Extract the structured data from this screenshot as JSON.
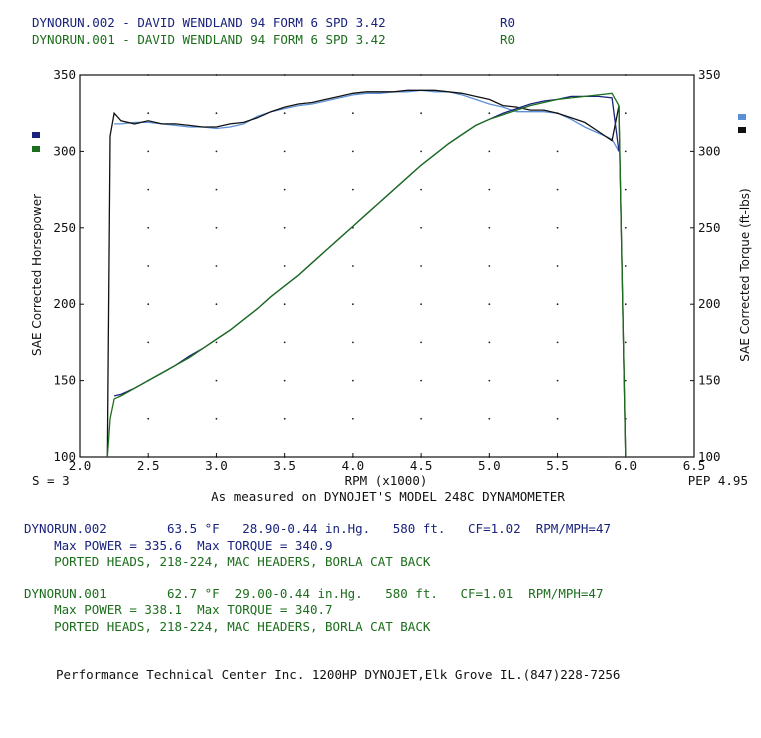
{
  "header": {
    "run2_title": "DYNORUN.002 - DAVID WENDLAND 94 FORM 6 SPD 3.42",
    "run2_code": "R0",
    "run1_title": "DYNORUN.001 - DAVID WENDLAND 94 FORM 6 SPD 3.42",
    "run1_code": "R0"
  },
  "colors": {
    "run2": "#1a237e",
    "run2_curve_hp": "#5b8fd6",
    "run1": "#1b6e1b",
    "run1_curve": "#111111"
  },
  "chart_data": {
    "type": "line",
    "xlabel": "RPM (x1000)",
    "ylabel_left": "SAE Corrected Horsepower",
    "ylabel_right": "SAE Corrected Torque (ft-lbs)",
    "xlim": [
      2.0,
      6.5
    ],
    "ylim": [
      100,
      350
    ],
    "x_ticks": [
      "2.0",
      "2.5",
      "3.0",
      "3.5",
      "4.0",
      "4.5",
      "5.0",
      "5.5",
      "6.0",
      "6.5"
    ],
    "y_ticks": [
      "100",
      "150",
      "200",
      "250",
      "300",
      "350"
    ],
    "grid": true,
    "smoothing_note": "S = 3",
    "pep_note": "PEP 4.95",
    "subtitle": "As measured on DYNOJET'S MODEL 248C DYNAMOMETER",
    "series": [
      {
        "name": "DYNORUN.002",
        "measure": "torque",
        "x": [
          2.25,
          2.3,
          2.4,
          2.5,
          2.6,
          2.7,
          2.8,
          2.9,
          3.0,
          3.1,
          3.2,
          3.3,
          3.4,
          3.5,
          3.6,
          3.7,
          3.8,
          3.9,
          4.0,
          4.1,
          4.2,
          4.3,
          4.4,
          4.5,
          4.6,
          4.7,
          4.8,
          4.9,
          5.0,
          5.1,
          5.2,
          5.3,
          5.4,
          5.5,
          5.6,
          5.7,
          5.8,
          5.9,
          5.95
        ],
        "y": [
          318,
          318,
          319,
          319,
          318,
          317,
          316,
          316,
          315,
          316,
          318,
          323,
          326,
          328,
          330,
          331,
          333,
          335,
          337,
          338,
          338,
          339,
          339,
          340,
          339,
          339,
          337,
          334,
          331,
          329,
          326,
          326,
          326,
          325,
          321,
          316,
          312,
          308,
          300
        ]
      },
      {
        "name": "DYNORUN.001",
        "measure": "torque",
        "x": [
          2.2,
          2.22,
          2.25,
          2.3,
          2.4,
          2.5,
          2.6,
          2.7,
          2.8,
          2.9,
          3.0,
          3.1,
          3.2,
          3.3,
          3.4,
          3.5,
          3.6,
          3.7,
          3.8,
          3.9,
          4.0,
          4.1,
          4.2,
          4.3,
          4.4,
          4.5,
          4.6,
          4.7,
          4.8,
          4.9,
          5.0,
          5.1,
          5.2,
          5.3,
          5.4,
          5.5,
          5.6,
          5.7,
          5.8,
          5.9,
          5.95,
          6.0
        ],
        "y": [
          100,
          310,
          325,
          320,
          318,
          320,
          318,
          318,
          317,
          316,
          316,
          318,
          319,
          322,
          326,
          329,
          331,
          332,
          334,
          336,
          338,
          339,
          339,
          339,
          340,
          340,
          340,
          339,
          338,
          336,
          334,
          330,
          329,
          327,
          327,
          325,
          322,
          319,
          313,
          307,
          330,
          100
        ]
      },
      {
        "name": "DYNORUN.002",
        "measure": "horsepower",
        "x": [
          2.25,
          2.3,
          2.4,
          2.5,
          2.6,
          2.7,
          2.8,
          2.9,
          3.0,
          3.1,
          3.2,
          3.3,
          3.4,
          3.5,
          3.6,
          3.7,
          3.8,
          3.9,
          4.0,
          4.1,
          4.2,
          4.3,
          4.4,
          4.5,
          4.6,
          4.7,
          4.8,
          4.9,
          5.0,
          5.1,
          5.2,
          5.3,
          5.4,
          5.5,
          5.6,
          5.7,
          5.8,
          5.9,
          5.95
        ],
        "y": [
          140,
          141,
          145,
          150,
          155,
          160,
          166,
          171,
          177,
          183,
          190,
          197,
          205,
          212,
          219,
          227,
          235,
          243,
          251,
          259,
          267,
          275,
          283,
          291,
          298,
          305,
          311,
          317,
          321,
          325,
          328,
          331,
          333,
          334,
          336,
          336,
          336,
          335,
          300
        ]
      },
      {
        "name": "DYNORUN.001",
        "measure": "horsepower",
        "x": [
          2.2,
          2.22,
          2.25,
          2.3,
          2.4,
          2.5,
          2.6,
          2.7,
          2.8,
          2.9,
          3.0,
          3.1,
          3.2,
          3.3,
          3.4,
          3.5,
          3.6,
          3.7,
          3.8,
          3.9,
          4.0,
          4.1,
          4.2,
          4.3,
          4.4,
          4.5,
          4.6,
          4.7,
          4.8,
          4.9,
          5.0,
          5.1,
          5.2,
          5.3,
          5.4,
          5.5,
          5.6,
          5.7,
          5.8,
          5.9,
          5.95,
          6.0
        ],
        "y": [
          100,
          125,
          138,
          140,
          145,
          150,
          155,
          160,
          165,
          171,
          177,
          183,
          190,
          197,
          205,
          212,
          219,
          227,
          235,
          243,
          251,
          259,
          267,
          275,
          283,
          291,
          298,
          305,
          311,
          317,
          321,
          324,
          327,
          330,
          332,
          334,
          335,
          336,
          337,
          338,
          330,
          100
        ]
      }
    ]
  },
  "run2_info": {
    "line1": "DYNORUN.002        63.5 °F   28.90-0.44 in.Hg.   580 ft.   CF=1.02  RPM/MPH=47",
    "line2": "    Max POWER = 335.6  Max TORQUE = 340.9",
    "line3": "    PORTED HEADS, 218-224, MAC HEADERS, BORLA CAT BACK"
  },
  "run1_info": {
    "line1": "DYNORUN.001        62.7 °F  29.00-0.44 in.Hg.   580 ft.   CF=1.01  RPM/MPH=47",
    "line2": "    Max POWER = 338.1  Max TORQUE = 340.7",
    "line3": "    PORTED HEADS, 218-224, MAC HEADERS, BORLA CAT BACK"
  },
  "footer": {
    "text": "Performance Technical Center Inc. 1200HP DYNOJET,Elk Grove IL.(847)228-7256"
  }
}
